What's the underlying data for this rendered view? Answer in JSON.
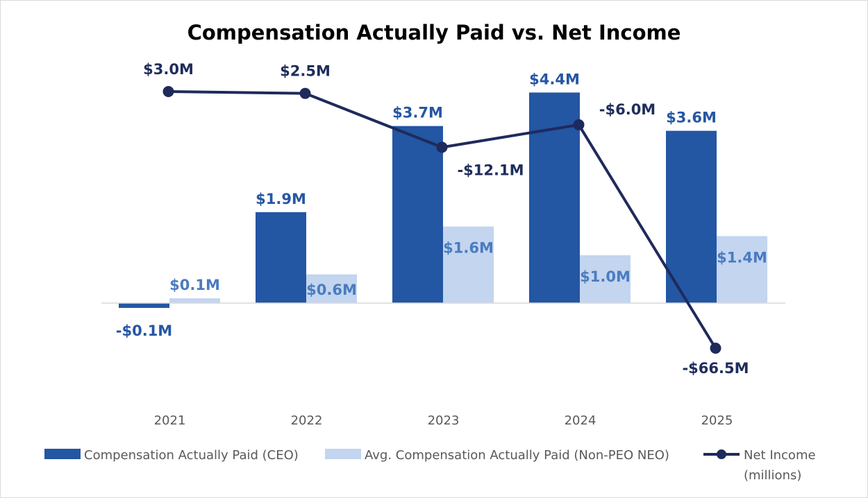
{
  "chart_data": {
    "type": "bar",
    "title": "Compensation Actually Paid vs. Net Income",
    "categories": [
      "2021",
      "2022",
      "2023",
      "2024",
      "2025"
    ],
    "series": [
      {
        "name": "Compensation Actually Paid (CEO)",
        "kind": "bar",
        "color": "#2356a3",
        "values": [
          -0.1,
          1.9,
          3.7,
          4.4,
          3.6
        ],
        "labels": [
          "-$0.1M",
          "$1.9M",
          "$3.7M",
          "$4.4M",
          "$3.6M"
        ]
      },
      {
        "name": "Avg. Compensation Actually Paid (Non-PEO NEO)",
        "kind": "bar",
        "color": "#c3d5ef",
        "values": [
          0.1,
          0.6,
          1.6,
          1.0,
          1.4
        ],
        "labels": [
          "$0.1M",
          "$0.6M",
          "$1.6M",
          "$1.0M",
          "$1.4M"
        ]
      },
      {
        "name": "Net Income (millions)",
        "legend_lines": [
          "Net Income",
          "(millions)"
        ],
        "kind": "line",
        "axis": "secondary",
        "color": "#1f2a5c",
        "values": [
          3.0,
          2.5,
          -12.1,
          -6.0,
          -66.5
        ],
        "labels": [
          "$3.0M",
          "$2.5M",
          "-$12.1M",
          "-$6.0M",
          "-$66.5M"
        ]
      }
    ],
    "xlabel": "",
    "ylabel": "",
    "grid": false,
    "legend": "bottom"
  }
}
